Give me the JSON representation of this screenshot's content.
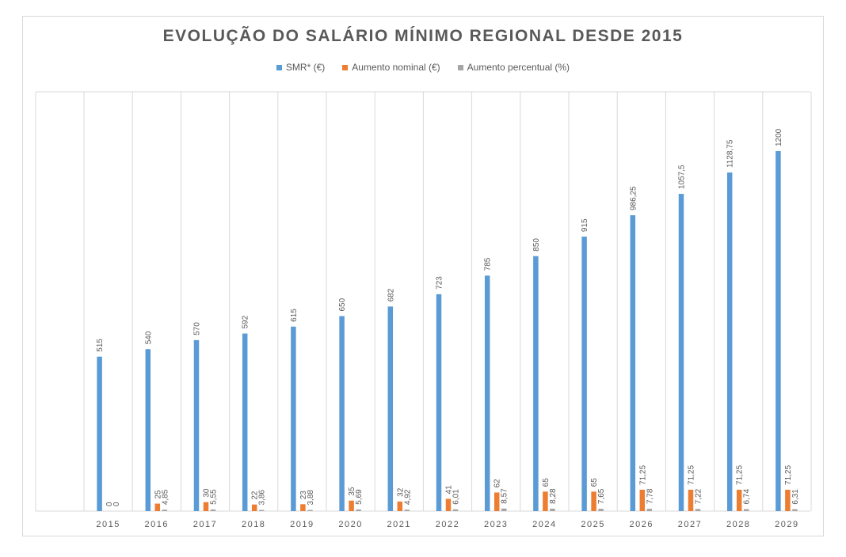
{
  "chart_data": {
    "type": "bar",
    "title": "EVOLUÇÃO DO SALÁRIO MÍNIMO REGIONAL DESDE 2015",
    "xlabel": "",
    "ylabel": "",
    "grid": "vertical",
    "legend_position": "top",
    "categories": [
      "2015",
      "2016",
      "2017",
      "2018",
      "2019",
      "2020",
      "2021",
      "2022",
      "2023",
      "2024",
      "2025",
      "2026",
      "2027",
      "2028",
      "2029"
    ],
    "ylim": [
      0,
      1300
    ],
    "series": [
      {
        "name": "SMR* (€)",
        "color": "#5b9bd5",
        "values": [
          515,
          540,
          570,
          592,
          615,
          650,
          682,
          723,
          785,
          850,
          915,
          986.25,
          1057.5,
          1128.75,
          1200
        ],
        "labels": [
          "515",
          "540",
          "570",
          "592",
          "615",
          "650",
          "682",
          "723",
          "785",
          "850",
          "915",
          "986,25",
          "1057,5",
          "1128,75",
          "1200"
        ]
      },
      {
        "name": "Aumento nominal (€)",
        "color": "#ed7d31",
        "values": [
          0,
          25,
          30,
          22,
          23,
          35,
          32,
          41,
          62,
          65,
          65,
          71.25,
          71.25,
          71.25,
          71.25
        ],
        "labels": [
          "0",
          "25",
          "30",
          "22",
          "23",
          "35",
          "32",
          "41",
          "62",
          "65",
          "65",
          "71,25",
          "71,25",
          "71,25",
          "71,25"
        ]
      },
      {
        "name": "Aumento percentual (%)",
        "color": "#a5a5a5",
        "values": [
          0,
          4.85,
          5.55,
          3.86,
          3.88,
          5.69,
          4.92,
          6.01,
          8.57,
          8.28,
          7.65,
          7.78,
          7.22,
          6.74,
          6.31
        ],
        "labels": [
          "0",
          "4,85",
          "5,55",
          "3,86",
          "3,88",
          "5,69",
          "4,92",
          "6,01",
          "8,57",
          "8,28",
          "7,65",
          "7,78",
          "7,22",
          "6,74",
          "6,31"
        ]
      }
    ]
  }
}
